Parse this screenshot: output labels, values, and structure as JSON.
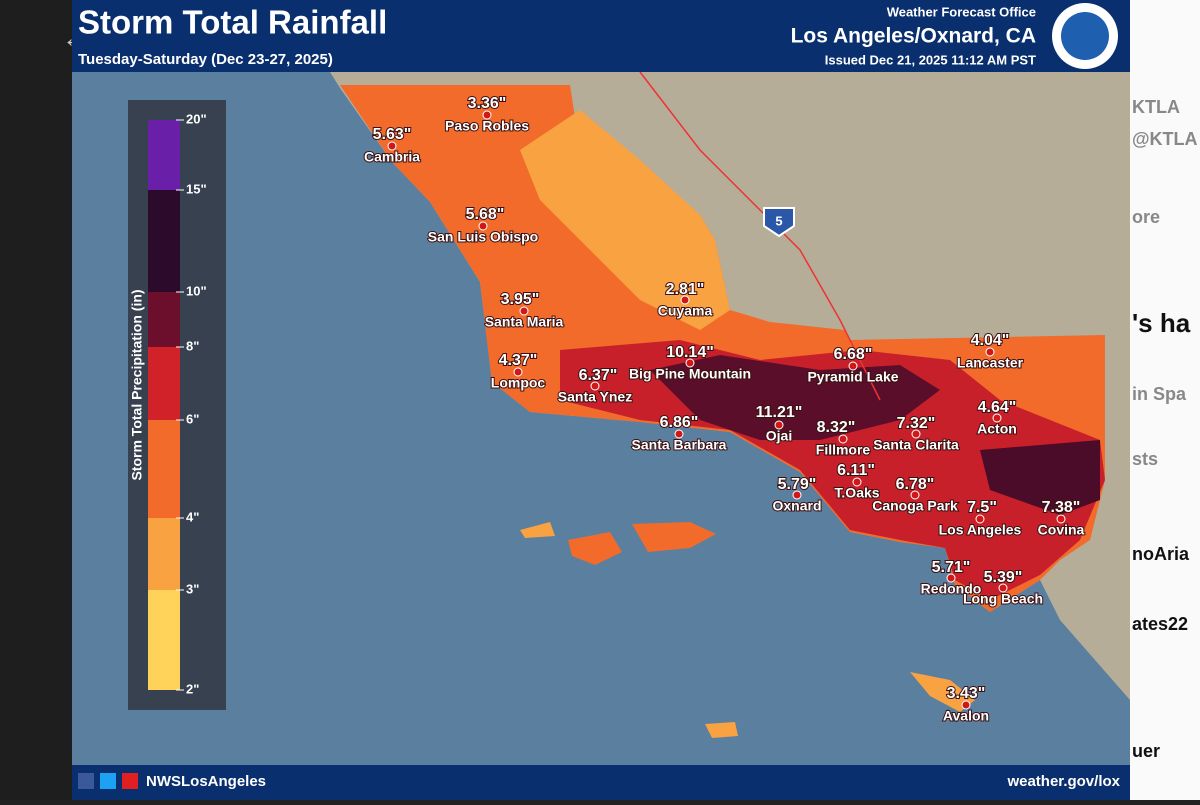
{
  "header": {
    "title": "Storm Total Rainfall",
    "subtitle": "Tuesday-Saturday (Dec 23-27, 2025)",
    "office_label": "Weather Forecast Office",
    "office": "Los Angeles/Oxnard, CA",
    "issued": "Issued Dec 21, 2025 11:12 AM PST"
  },
  "legend": {
    "title": "Storm Total Precipitation (in)",
    "ticks": [
      "20\"",
      "15\"",
      "10\"",
      "8\"",
      "6\"",
      "4\"",
      "3\"",
      "2\""
    ]
  },
  "highway": "5",
  "locations": [
    {
      "name": "Paso Robles",
      "amount": "3.36\""
    },
    {
      "name": "Cambria",
      "amount": "5.63\""
    },
    {
      "name": "San Luis Obispo",
      "amount": "5.68\""
    },
    {
      "name": "Cuyama",
      "amount": "2.81\""
    },
    {
      "name": "Santa Maria",
      "amount": "3.95\""
    },
    {
      "name": "Lompoc",
      "amount": "4.37\""
    },
    {
      "name": "Santa Ynez",
      "amount": "6.37\""
    },
    {
      "name": "Big Pine Mountain",
      "amount": "10.14\""
    },
    {
      "name": "Santa Barbara",
      "amount": "6.86\""
    },
    {
      "name": "Ojai",
      "amount": "11.21\""
    },
    {
      "name": "Fillmore",
      "amount": "8.32\""
    },
    {
      "name": "Pyramid Lake",
      "amount": "6.68\""
    },
    {
      "name": "Santa Clarita",
      "amount": "7.32\""
    },
    {
      "name": "Lancaster",
      "amount": "4.04\""
    },
    {
      "name": "Acton",
      "amount": "4.64\""
    },
    {
      "name": "T.Oaks",
      "amount": "6.11\""
    },
    {
      "name": "Oxnard",
      "amount": "5.79\""
    },
    {
      "name": "Canoga Park",
      "amount": "6.78\""
    },
    {
      "name": "Los Angeles",
      "amount": "7.5\""
    },
    {
      "name": "Covina",
      "amount": "7.38\""
    },
    {
      "name": "Redondo",
      "amount": "5.71\""
    },
    {
      "name": "Long Beach",
      "amount": "5.39\""
    },
    {
      "name": "Avalon",
      "amount": "3.43\""
    }
  ],
  "footer": {
    "handle": "NWSLosAngeles",
    "url": "weather.gov/lox"
  },
  "side_fragments": [
    "KTLA",
    "@KTLA",
    "ore",
    "'s ha",
    "in Spa",
    "sts",
    "noAria",
    "ates22",
    "uer"
  ]
}
